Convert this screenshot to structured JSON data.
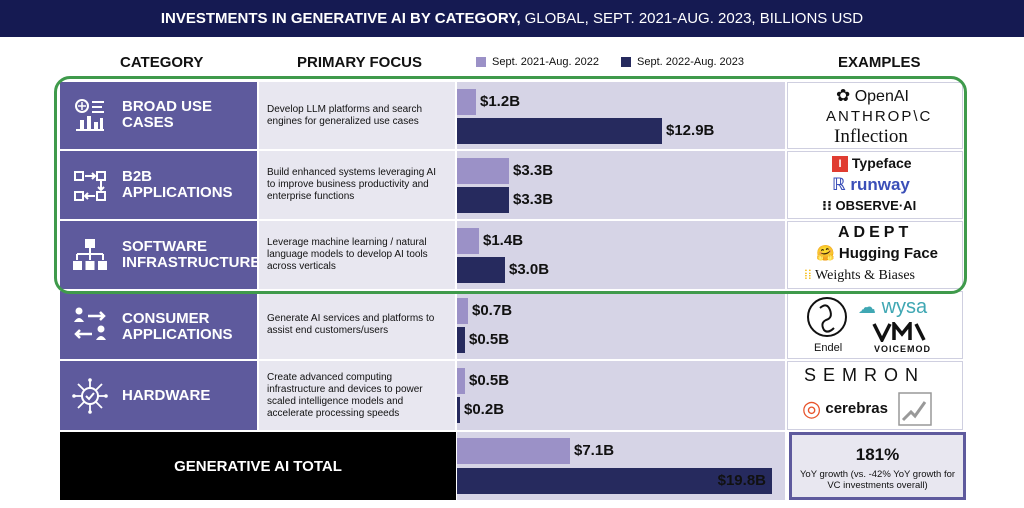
{
  "title": {
    "bold": "INVESTMENTS IN GENERATIVE AI BY CATEGORY,",
    "rest": "GLOBAL, SEPT. 2021-AUG. 2023, BILLIONS USD"
  },
  "headers": {
    "category": "CATEGORY",
    "focus": "PRIMARY FOCUS",
    "examples": "EXAMPLES"
  },
  "legend": {
    "period1": "Sept. 2021-Aug. 2022",
    "period2": "Sept. 2022-Aug. 2023"
  },
  "colors": {
    "period1": "#9b91c7",
    "period2": "#262a5e",
    "category_bg": "#5e5a9d",
    "title_bg": "#151a52",
    "highlight": "#3f9a4b"
  },
  "rows": [
    {
      "label1": "BROAD USE",
      "label2": "CASES",
      "icon": "broad-use-icon",
      "focus": "Develop LLM platforms and search engines for generalized use cases",
      "v22": 1.2,
      "v23": 12.9,
      "v22_label": "$1.2B",
      "v23_label": "$12.9B",
      "examples": [
        "OpenAI",
        "ANTHROP\\C",
        "Inflection"
      ]
    },
    {
      "label1": "B2B",
      "label2": "APPLICATIONS",
      "icon": "b2b-flow-icon",
      "focus": "Build enhanced systems leveraging AI to improve business productivity and enterprise functions",
      "v22": 3.3,
      "v23": 3.3,
      "v22_label": "$3.3B",
      "v23_label": "$3.3B",
      "examples": [
        "Typeface",
        "runway",
        "OBSERVE·AI"
      ]
    },
    {
      "label1": "SOFTWARE",
      "label2": "INFRASTRUCTURE",
      "icon": "network-hierarchy-icon",
      "focus": "Leverage machine learning / natural language models to develop AI tools across verticals",
      "v22": 1.4,
      "v23": 3.0,
      "v22_label": "$1.4B",
      "v23_label": "$3.0B",
      "examples": [
        "ADEPT",
        "Hugging Face",
        "Weights & Biases"
      ]
    },
    {
      "label1": "CONSUMER",
      "label2": "APPLICATIONS",
      "icon": "consumer-exchange-icon",
      "focus": "Generate AI services and platforms to assist end customers/users",
      "v22": 0.7,
      "v23": 0.5,
      "v22_label": "$0.7B",
      "v23_label": "$0.5B",
      "examples": [
        "Endel",
        "wysa",
        "VOICEMOD"
      ]
    },
    {
      "label1": "HARDWARE",
      "label2": "",
      "icon": "chip-icon",
      "focus": "Create advanced computing infrastructure and devices to power scaled intelligence models and accelerate processing speeds",
      "v22": 0.5,
      "v23": 0.2,
      "v22_label": "$0.5B",
      "v23_label": "$0.2B",
      "examples": [
        "SEMRON",
        "cerebras"
      ]
    }
  ],
  "total": {
    "label": "GENERATIVE AI TOTAL",
    "v22": 7.1,
    "v23": 19.8,
    "v22_label": "$7.1B",
    "v23_label": "$19.8B",
    "growth_pct": "181%",
    "growth_text": "YoY growth (vs. -42% YoY growth for VC investments overall)"
  },
  "chart_data": {
    "type": "bar",
    "categories": [
      "BROAD USE CASES",
      "B2B APPLICATIONS",
      "SOFTWARE INFRASTRUCTURE",
      "CONSUMER APPLICATIONS",
      "HARDWARE",
      "GENERATIVE AI TOTAL"
    ],
    "series": [
      {
        "name": "Sept. 2021-Aug. 2022",
        "values": [
          1.2,
          3.3,
          1.4,
          0.7,
          0.5,
          7.1
        ]
      },
      {
        "name": "Sept. 2022-Aug. 2023",
        "values": [
          12.9,
          3.3,
          3.0,
          0.5,
          0.2,
          19.8
        ]
      }
    ],
    "title": "INVESTMENTS IN GENERATIVE AI BY CATEGORY, GLOBAL, SEPT. 2021-AUG. 2023, BILLIONS USD",
    "orientation": "horizontal",
    "legend": "top",
    "grid": false
  }
}
